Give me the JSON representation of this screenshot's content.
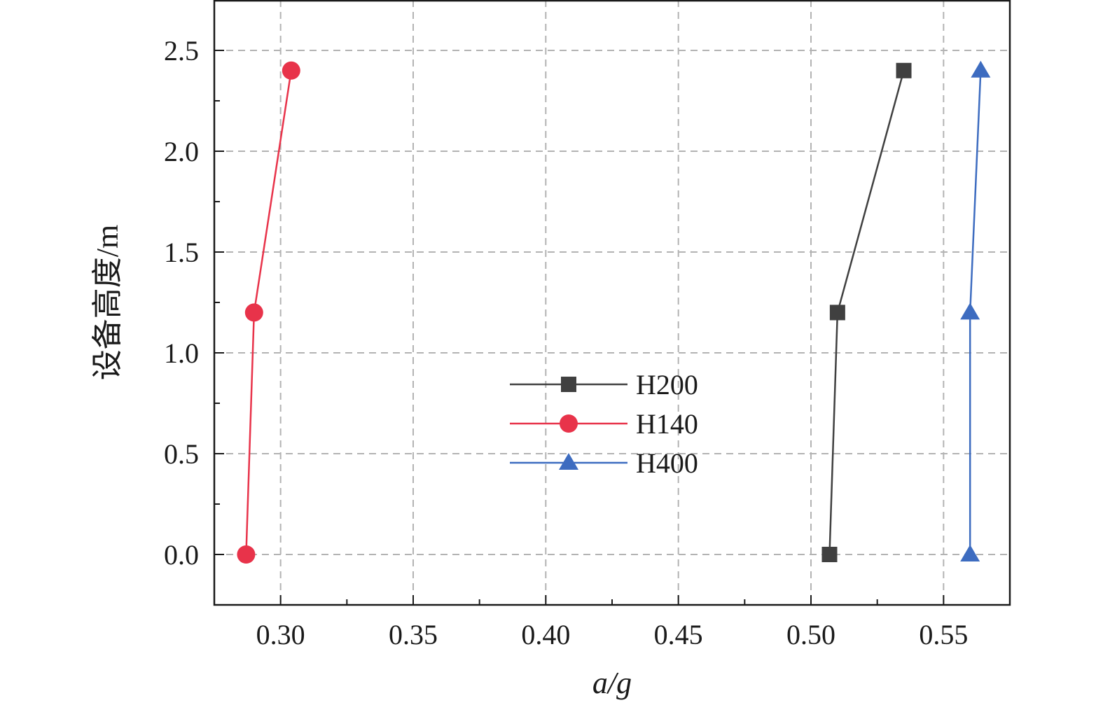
{
  "chart_data": {
    "type": "line",
    "title": "",
    "xlabel": "a/g",
    "ylabel": "设备高度/m",
    "xlim": [
      0.275,
      0.575
    ],
    "ylim": [
      -0.25,
      2.75
    ],
    "xticks": [
      0.3,
      0.35,
      0.4,
      0.45,
      0.5,
      0.55
    ],
    "xtick_labels": [
      "0.30",
      "0.35",
      "0.40",
      "0.45",
      "0.50",
      "0.55"
    ],
    "yticks": [
      0.0,
      0.5,
      1.0,
      1.5,
      2.0,
      2.5
    ],
    "ytick_labels": [
      "0.0",
      "0.5",
      "1.0",
      "1.5",
      "2.0",
      "2.5"
    ],
    "grid": true,
    "legend_position": "center",
    "series": [
      {
        "name": "H200",
        "marker": "square",
        "color": "#404040",
        "x": [
          0.507,
          0.51,
          0.535
        ],
        "y": [
          0.0,
          1.2,
          2.4
        ]
      },
      {
        "name": "H140",
        "marker": "circle",
        "color": "#e8334a",
        "x": [
          0.287,
          0.29,
          0.304
        ],
        "y": [
          0.0,
          1.2,
          2.4
        ]
      },
      {
        "name": "H400",
        "marker": "triangle",
        "color": "#3d6cc0",
        "x": [
          0.56,
          0.56,
          0.564
        ],
        "y": [
          0.0,
          1.2,
          2.4
        ]
      }
    ]
  }
}
